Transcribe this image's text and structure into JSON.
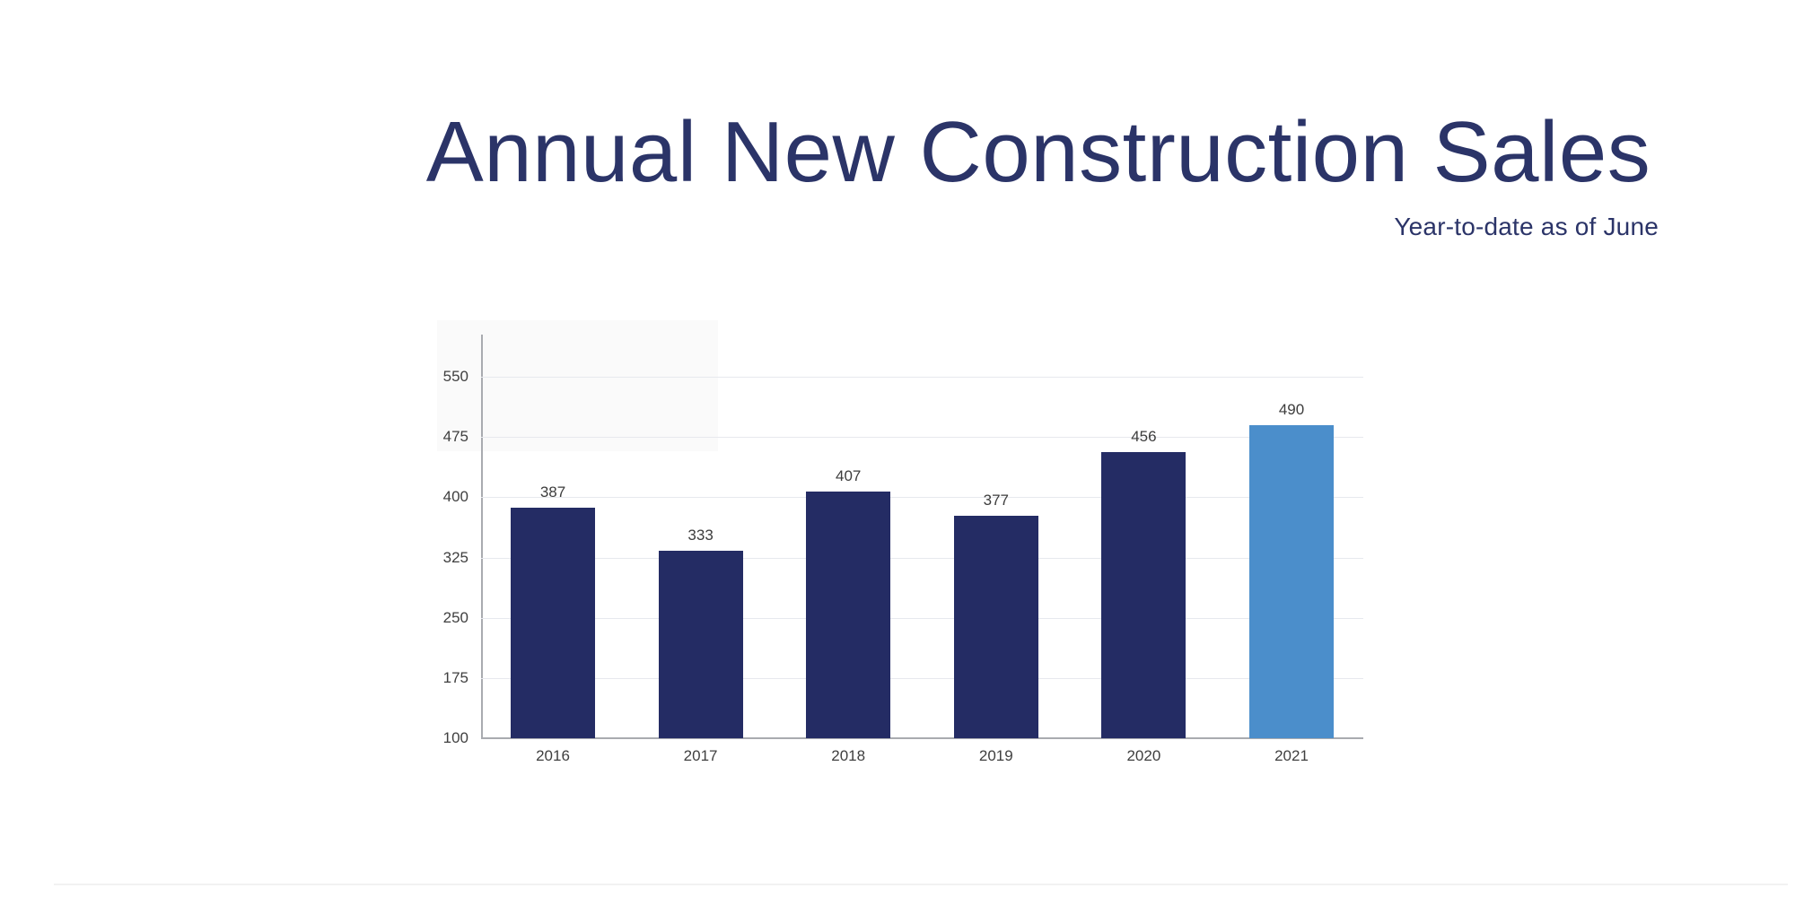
{
  "header": {
    "title": "Annual New Construction Sales",
    "subtitle": "Year-to-date as of June",
    "title_color": "#2b3468"
  },
  "chart_data": {
    "type": "bar",
    "title": "Annual New Construction Sales",
    "subtitle": "Year-to-date as of June",
    "categories": [
      "2016",
      "2017",
      "2018",
      "2019",
      "2020",
      "2021"
    ],
    "values": [
      387,
      333,
      407,
      377,
      456,
      490
    ],
    "value_labels_shown": true,
    "xlabel": "",
    "ylabel": "",
    "ylim": [
      100,
      550
    ],
    "yticks": [
      100,
      175,
      250,
      325,
      400,
      475,
      550
    ],
    "grid": true,
    "legend": "none",
    "highlight_index": 5,
    "colors": {
      "bar": "#242c64",
      "highlight_bar": "#4b8ecb",
      "grid_line": "#e7e9ee",
      "axis_line": "#a9abb0",
      "tick_label": "#3f3f3f",
      "value_label": "#3c3c3c"
    }
  }
}
